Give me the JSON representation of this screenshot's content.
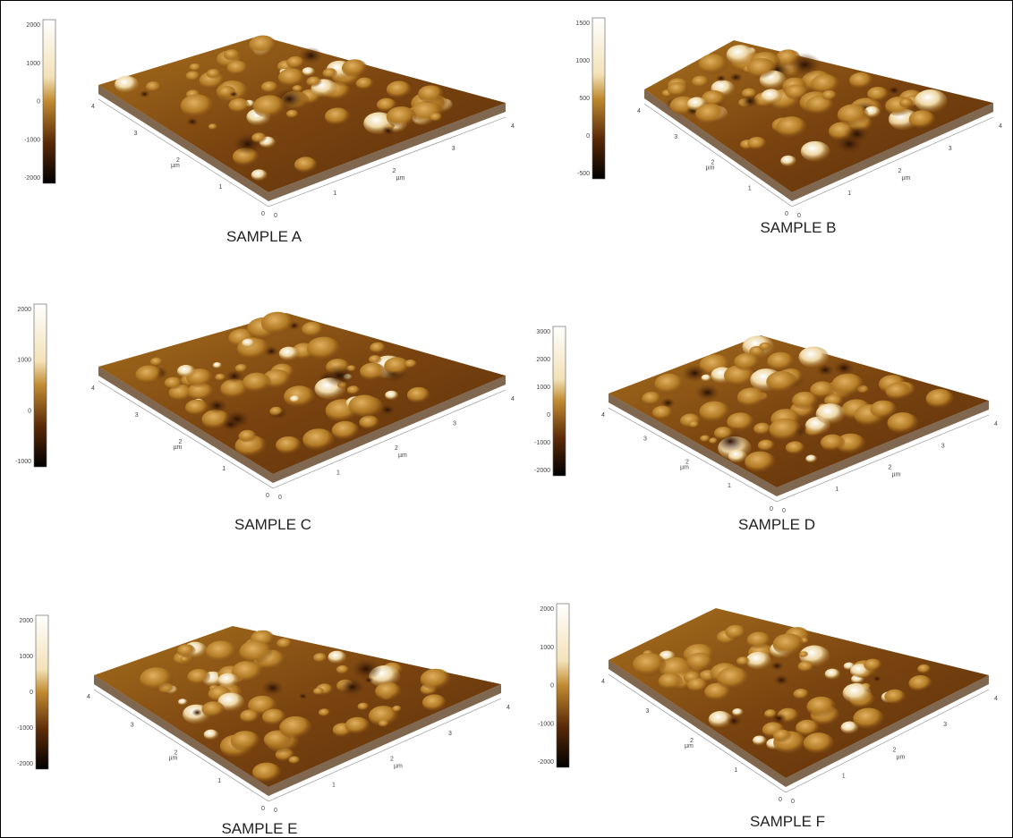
{
  "panels": [
    {
      "label": "SAMPLE A",
      "colorbar_ticks": [
        "2000",
        "1000",
        "0",
        "-1000",
        "-2000"
      ]
    },
    {
      "label": "SAMPLE B",
      "colorbar_ticks": [
        "1500",
        "1000",
        "500",
        "0",
        "-500"
      ]
    },
    {
      "label": "SAMPLE C",
      "colorbar_ticks": [
        "2000",
        "1000",
        "0",
        "-1000"
      ]
    },
    {
      "label": "SAMPLE D",
      "colorbar_ticks": [
        "3000",
        "2000",
        "1000",
        "0",
        "-1000",
        "-2000"
      ]
    },
    {
      "label": "SAMPLE E",
      "colorbar_ticks": [
        "2000",
        "1000",
        "0",
        "-1000",
        "-2000"
      ]
    },
    {
      "label": "SAMPLE F",
      "colorbar_ticks": [
        "2000",
        "1000",
        "0",
        "-1000",
        "-2000"
      ]
    }
  ],
  "axis": {
    "ticks": [
      "0",
      "1",
      "2",
      "3",
      "4"
    ],
    "unit": "µm"
  }
}
